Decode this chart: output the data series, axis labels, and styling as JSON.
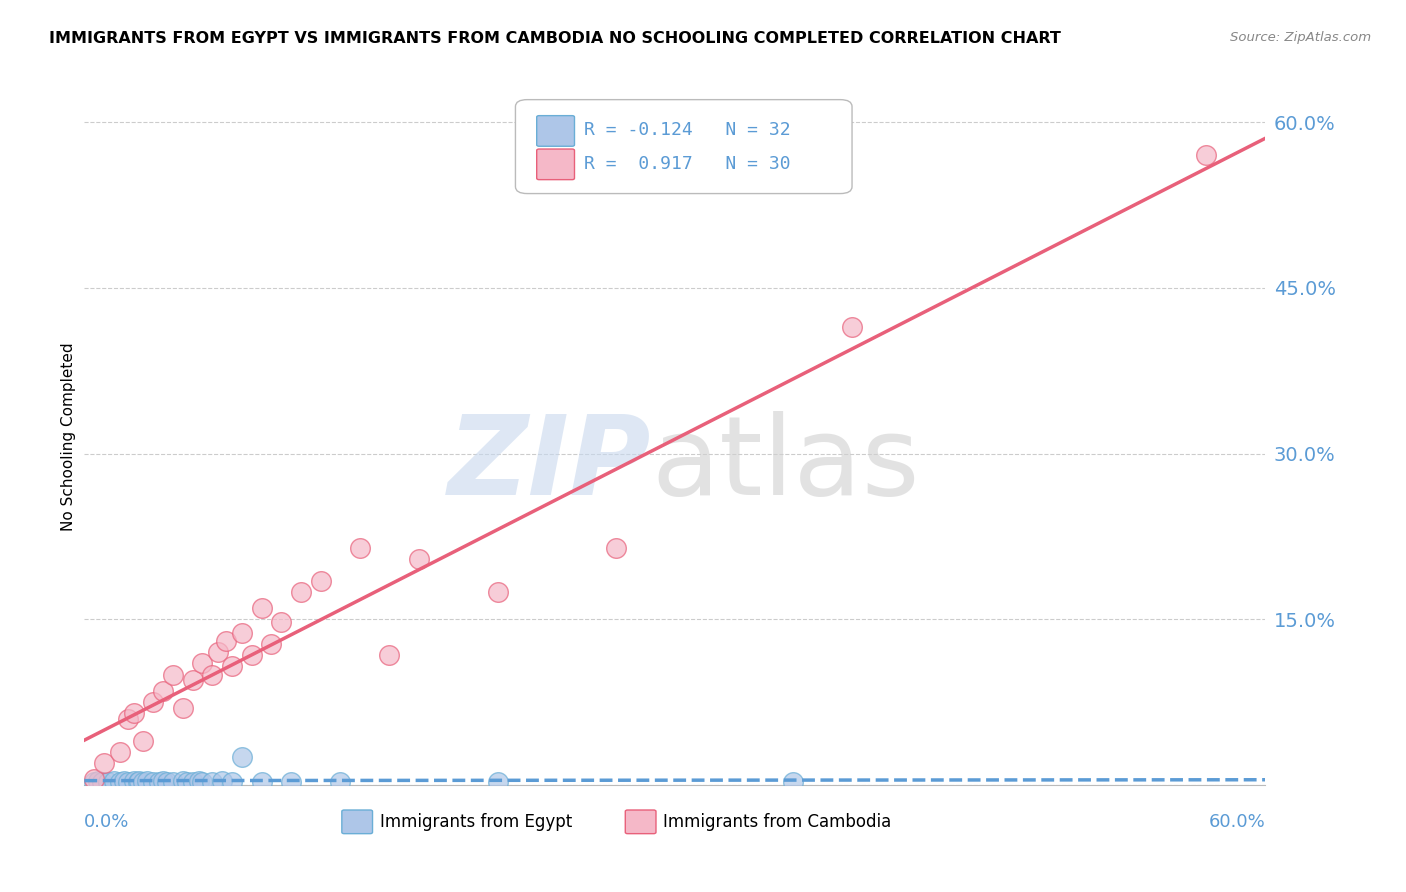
{
  "title": "IMMIGRANTS FROM EGYPT VS IMMIGRANTS FROM CAMBODIA NO SCHOOLING COMPLETED CORRELATION CHART",
  "source": "Source: ZipAtlas.com",
  "ylabel": "No Schooling Completed",
  "xlim": [
    0.0,
    0.6
  ],
  "ylim": [
    0.0,
    0.63
  ],
  "yticks": [
    0.0,
    0.15,
    0.3,
    0.45,
    0.6
  ],
  "ytick_labels": [
    "",
    "15.0%",
    "30.0%",
    "45.0%",
    "60.0%"
  ],
  "background_color": "#ffffff",
  "egypt_color": "#aec6e8",
  "cambodia_color": "#f5b8c8",
  "egypt_edge_color": "#6aaed6",
  "cambodia_edge_color": "#e8607a",
  "egypt_line_color": "#5b9bd5",
  "cambodia_line_color": "#e8607a",
  "tick_color": "#5b9bd5",
  "grid_color": "#cccccc",
  "egypt_R": -0.124,
  "egypt_N": 32,
  "cambodia_R": 0.917,
  "cambodia_N": 30,
  "egypt_x": [
    0.005,
    0.007,
    0.009,
    0.012,
    0.015,
    0.018,
    0.02,
    0.022,
    0.025,
    0.027,
    0.028,
    0.03,
    0.032,
    0.035,
    0.038,
    0.04,
    0.042,
    0.045,
    0.05,
    0.052,
    0.055,
    0.058,
    0.06,
    0.065,
    0.07,
    0.075,
    0.08,
    0.09,
    0.105,
    0.13,
    0.21,
    0.36
  ],
  "egypt_y": [
    0.003,
    0.004,
    0.003,
    0.003,
    0.004,
    0.003,
    0.004,
    0.003,
    0.004,
    0.003,
    0.004,
    0.003,
    0.004,
    0.003,
    0.003,
    0.004,
    0.003,
    0.003,
    0.004,
    0.003,
    0.003,
    0.004,
    0.003,
    0.003,
    0.004,
    0.003,
    0.025,
    0.003,
    0.003,
    0.003,
    0.003,
    0.003
  ],
  "cambodia_x": [
    0.005,
    0.01,
    0.018,
    0.022,
    0.025,
    0.03,
    0.035,
    0.04,
    0.045,
    0.05,
    0.055,
    0.06,
    0.065,
    0.068,
    0.072,
    0.075,
    0.08,
    0.085,
    0.09,
    0.095,
    0.1,
    0.11,
    0.12,
    0.14,
    0.155,
    0.17,
    0.21,
    0.27,
    0.39,
    0.57
  ],
  "cambodia_y": [
    0.005,
    0.02,
    0.03,
    0.06,
    0.065,
    0.04,
    0.075,
    0.085,
    0.1,
    0.07,
    0.095,
    0.11,
    0.1,
    0.12,
    0.13,
    0.108,
    0.138,
    0.118,
    0.16,
    0.128,
    0.148,
    0.175,
    0.185,
    0.215,
    0.118,
    0.205,
    0.175,
    0.215,
    0.415,
    0.57
  ]
}
